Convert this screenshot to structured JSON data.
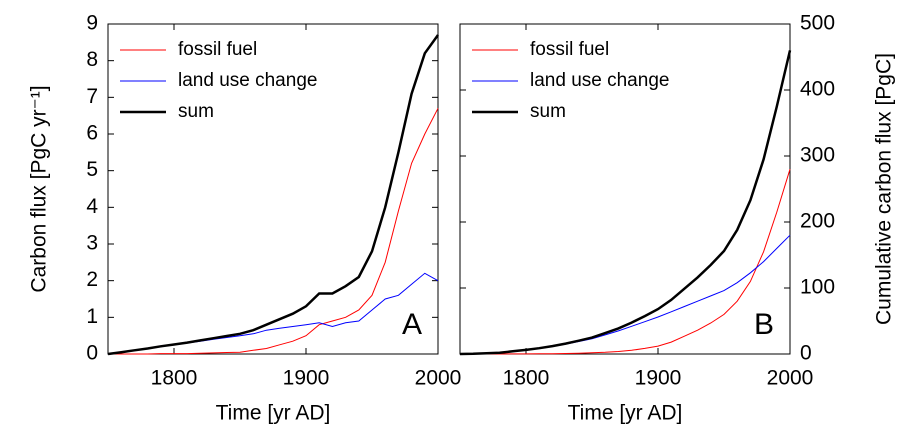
{
  "chart_data": [
    {
      "type": "line",
      "annotation": "A",
      "xlabel": "Time [yr AD]",
      "ylabel": "Carbon flux [PgC yr⁻¹]",
      "yaxis": "left",
      "x": [
        1750,
        1760,
        1770,
        1780,
        1790,
        1800,
        1810,
        1820,
        1830,
        1840,
        1850,
        1860,
        1870,
        1880,
        1890,
        1900,
        1910,
        1920,
        1930,
        1940,
        1950,
        1960,
        1970,
        1980,
        1990,
        2000
      ],
      "xlim": [
        1750,
        2000
      ],
      "xticks": [
        1800,
        1900,
        2000
      ],
      "ylim": [
        0,
        9
      ],
      "yticks": [
        0,
        1,
        2,
        3,
        4,
        5,
        6,
        7,
        8,
        9
      ],
      "legend": "upper left",
      "series": [
        {
          "name": "fossil fuel",
          "color": "#ff0000",
          "width": 1,
          "values": [
            0,
            0,
            0,
            0,
            0.01,
            0.01,
            0.01,
            0.02,
            0.03,
            0.04,
            0.05,
            0.1,
            0.15,
            0.25,
            0.35,
            0.5,
            0.8,
            0.9,
            1.0,
            1.2,
            1.6,
            2.5,
            3.9,
            5.2,
            6.0,
            6.7
          ]
        },
        {
          "name": "land use change",
          "color": "#0000ff",
          "width": 1,
          "values": [
            0,
            0.05,
            0.1,
            0.15,
            0.2,
            0.25,
            0.3,
            0.35,
            0.4,
            0.45,
            0.5,
            0.55,
            0.65,
            0.7,
            0.75,
            0.8,
            0.85,
            0.75,
            0.85,
            0.9,
            1.2,
            1.5,
            1.6,
            1.9,
            2.2,
            2.0
          ]
        },
        {
          "name": "sum",
          "color": "#000000",
          "width": 2.5,
          "values": [
            0,
            0.05,
            0.1,
            0.15,
            0.21,
            0.26,
            0.31,
            0.37,
            0.43,
            0.49,
            0.55,
            0.65,
            0.8,
            0.95,
            1.1,
            1.3,
            1.65,
            1.65,
            1.85,
            2.1,
            2.8,
            4.0,
            5.5,
            7.1,
            8.2,
            8.7
          ]
        }
      ]
    },
    {
      "type": "line",
      "annotation": "B",
      "xlabel": "Time [yr AD]",
      "ylabel": "Cumulative carbon flux [PgC]",
      "yaxis": "right",
      "x": [
        1750,
        1760,
        1770,
        1780,
        1790,
        1800,
        1810,
        1820,
        1830,
        1840,
        1850,
        1860,
        1870,
        1880,
        1890,
        1900,
        1910,
        1920,
        1930,
        1940,
        1950,
        1960,
        1970,
        1980,
        1990,
        2000
      ],
      "xlim": [
        1750,
        2000
      ],
      "xticks": [
        1800,
        1900,
        2000
      ],
      "ylim": [
        0,
        500
      ],
      "yticks": [
        0,
        100,
        200,
        300,
        400,
        500
      ],
      "legend": "upper left",
      "series": [
        {
          "name": "fossil fuel",
          "color": "#ff0000",
          "width": 1,
          "values": [
            0,
            0,
            0,
            0,
            0.1,
            0.2,
            0.3,
            0.5,
            0.8,
            1.2,
            1.8,
            2.6,
            3.8,
            5.6,
            8.5,
            12,
            18,
            27,
            36,
            47,
            60,
            80,
            110,
            155,
            215,
            280
          ]
        },
        {
          "name": "land use change",
          "color": "#0000ff",
          "width": 1,
          "values": [
            0,
            0.3,
            1,
            2,
            4,
            6,
            8.5,
            11.5,
            15,
            19,
            23,
            29,
            35,
            42,
            49,
            56,
            64,
            72,
            80,
            88,
            96,
            108,
            123,
            140,
            160,
            180
          ]
        },
        {
          "name": "sum",
          "color": "#000000",
          "width": 2.5,
          "values": [
            0,
            0.3,
            1,
            2,
            4.1,
            6.2,
            8.8,
            12,
            15.8,
            20.2,
            24.8,
            31.6,
            38.8,
            47.6,
            57.5,
            68,
            82,
            99,
            116,
            135,
            156,
            188,
            233,
            295,
            375,
            460
          ]
        }
      ]
    }
  ]
}
